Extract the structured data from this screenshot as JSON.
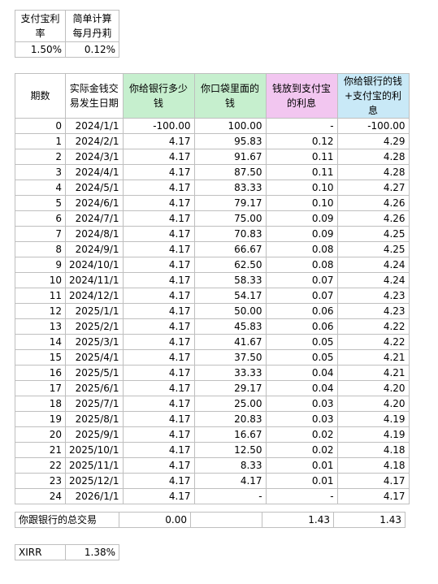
{
  "rates": {
    "headers": [
      "支付宝利率",
      "简单计算每月丹莉"
    ],
    "values": [
      "1.50%",
      "0.12%"
    ]
  },
  "table": {
    "headers": [
      "期数",
      "实际金钱交易发生日期",
      "你给银行多少钱",
      "你口袋里面的钱",
      "钱放到支付宝的利息",
      "你给银行的钱+支付宝的利息"
    ],
    "rows": [
      [
        "0",
        "2024/1/1",
        "-100.00",
        "100.00",
        "-",
        "-100.00"
      ],
      [
        "1",
        "2024/2/1",
        "4.17",
        "95.83",
        "0.12",
        "4.29"
      ],
      [
        "2",
        "2024/3/1",
        "4.17",
        "91.67",
        "0.11",
        "4.28"
      ],
      [
        "3",
        "2024/4/1",
        "4.17",
        "87.50",
        "0.11",
        "4.28"
      ],
      [
        "4",
        "2024/5/1",
        "4.17",
        "83.33",
        "0.10",
        "4.27"
      ],
      [
        "5",
        "2024/6/1",
        "4.17",
        "79.17",
        "0.10",
        "4.26"
      ],
      [
        "6",
        "2024/7/1",
        "4.17",
        "75.00",
        "0.09",
        "4.26"
      ],
      [
        "7",
        "2024/8/1",
        "4.17",
        "70.83",
        "0.09",
        "4.25"
      ],
      [
        "8",
        "2024/9/1",
        "4.17",
        "66.67",
        "0.08",
        "4.25"
      ],
      [
        "9",
        "2024/10/1",
        "4.17",
        "62.50",
        "0.08",
        "4.24"
      ],
      [
        "10",
        "2024/11/1",
        "4.17",
        "58.33",
        "0.07",
        "4.24"
      ],
      [
        "11",
        "2024/12/1",
        "4.17",
        "54.17",
        "0.07",
        "4.23"
      ],
      [
        "12",
        "2025/1/1",
        "4.17",
        "50.00",
        "0.06",
        "4.23"
      ],
      [
        "13",
        "2025/2/1",
        "4.17",
        "45.83",
        "0.06",
        "4.22"
      ],
      [
        "14",
        "2025/3/1",
        "4.17",
        "41.67",
        "0.05",
        "4.22"
      ],
      [
        "15",
        "2025/4/1",
        "4.17",
        "37.50",
        "0.05",
        "4.21"
      ],
      [
        "16",
        "2025/5/1",
        "4.17",
        "33.33",
        "0.04",
        "4.21"
      ],
      [
        "17",
        "2025/6/1",
        "4.17",
        "29.17",
        "0.04",
        "4.20"
      ],
      [
        "18",
        "2025/7/1",
        "4.17",
        "25.00",
        "0.03",
        "4.20"
      ],
      [
        "19",
        "2025/8/1",
        "4.17",
        "20.83",
        "0.03",
        "4.19"
      ],
      [
        "20",
        "2025/9/1",
        "4.17",
        "16.67",
        "0.02",
        "4.19"
      ],
      [
        "21",
        "2025/10/1",
        "4.17",
        "12.50",
        "0.02",
        "4.18"
      ],
      [
        "22",
        "2025/11/1",
        "4.17",
        "8.33",
        "0.01",
        "4.18"
      ],
      [
        "23",
        "2025/12/1",
        "4.17",
        "4.17",
        "0.01",
        "4.17"
      ],
      [
        "24",
        "2026/1/1",
        "4.17",
        "-",
        "-",
        "4.17"
      ]
    ]
  },
  "totals": {
    "label": "你跟银行的总交易",
    "bank": "0.00",
    "pocket": "",
    "interest": "1.43",
    "combined": "1.43"
  },
  "xirr": {
    "label": "XIRR",
    "value": "1.38%"
  },
  "colors": {
    "header_green": "#c6efce",
    "header_pink": "#f2c6f0",
    "header_blue": "#c9e9f7",
    "gridline": "#bfbfbf"
  }
}
